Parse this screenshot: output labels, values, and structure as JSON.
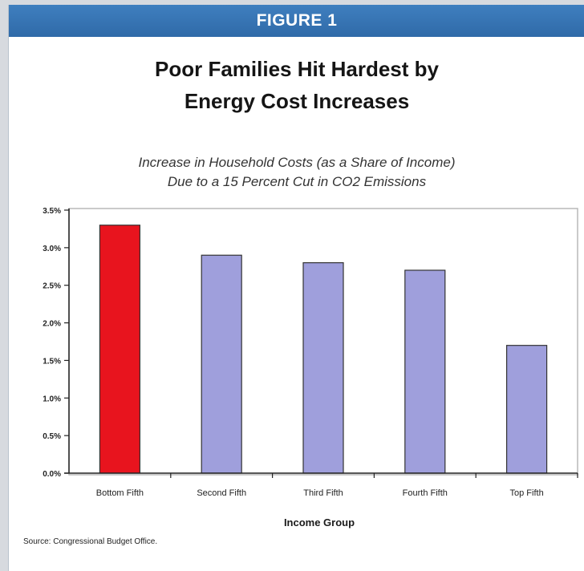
{
  "figure_label": "FIGURE 1",
  "source": "Source: Congressional Budget Office.",
  "colors": {
    "banner": "#3572b3",
    "highlight_bar": "#e8141e",
    "bar": "#9f9fdc",
    "bar_edge": "#333333",
    "plot_border": "#b8b8b8"
  },
  "chart_data": {
    "type": "bar",
    "title": [
      "Poor Families Hit Hardest by",
      "Energy Cost Increases"
    ],
    "subtitle": [
      "Increase in Household Costs (as a Share of Income)",
      "Due to a 15 Percent Cut in CO2 Emissions"
    ],
    "xlabel": "Income Group",
    "ylabel": "",
    "categories": [
      "Bottom Fifth",
      "Second Fifth",
      "Third Fifth",
      "Fourth Fifth",
      "Top Fifth"
    ],
    "values": [
      3.3,
      2.9,
      2.8,
      2.7,
      1.7
    ],
    "unit": "%",
    "highlight_index": 0,
    "ylim": [
      0,
      3.5
    ],
    "yticks": [
      0.0,
      0.5,
      1.0,
      1.5,
      2.0,
      2.5,
      3.0,
      3.5
    ],
    "ytick_labels": [
      "0.0%",
      "0.5%",
      "1.0%",
      "1.5%",
      "2.0%",
      "2.5%",
      "3.0%",
      "3.5%"
    ],
    "grid": false,
    "legend": "none"
  }
}
